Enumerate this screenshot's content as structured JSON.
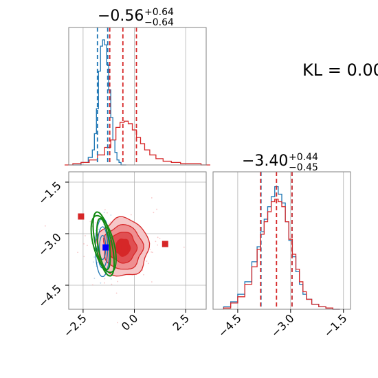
{
  "kl_label": "KL = 0.00",
  "colors": {
    "blue": "#1f77b4",
    "red": "#d62728",
    "green": "#138a13",
    "grid": "#b0b0b0",
    "contour_fill": [
      "#f6c7c8",
      "#ef8f91",
      "#e04f52",
      "#d62728"
    ]
  },
  "chart_data": [
    {
      "panel": "marginal-x",
      "type": "histogram",
      "title": {
        "value": "−0.56",
        "plus": "+0.64",
        "minus": "−0.64"
      },
      "xlim": [
        -3.2,
        3.5
      ],
      "series": [
        {
          "name": "",
          "color": "#1f77b4",
          "x": [
            -2.8,
            -2.4,
            -2.1,
            -2.0,
            -1.9,
            -1.8,
            -1.7,
            -1.6,
            -1.5,
            -1.4,
            -1.3,
            -1.2,
            -1.1,
            -1.0,
            -0.9,
            -0.8,
            -0.7,
            -0.6
          ],
          "density": [
            0.0,
            0.02,
            0.06,
            0.12,
            0.25,
            0.45,
            0.75,
            0.95,
            1.0,
            0.96,
            0.8,
            0.6,
            0.38,
            0.2,
            0.1,
            0.04,
            0.02,
            0.0
          ],
          "quantiles": [
            -1.8,
            -1.3
          ]
        },
        {
          "name": "",
          "color": "#d62728",
          "x": [
            -3.2,
            -2.8,
            -2.4,
            -2.0,
            -1.6,
            -1.3,
            -1.0,
            -0.8,
            -0.6,
            -0.4,
            -0.2,
            0.0,
            0.2,
            0.4,
            0.6,
            0.9,
            1.2,
            1.6,
            2.0,
            2.5,
            3.0,
            3.5
          ],
          "density": [
            0.0,
            0.01,
            0.02,
            0.04,
            0.08,
            0.14,
            0.2,
            0.3,
            0.34,
            0.35,
            0.33,
            0.28,
            0.22,
            0.17,
            0.12,
            0.08,
            0.05,
            0.03,
            0.02,
            0.01,
            0.01,
            0.0
          ],
          "quantiles": [
            -1.2,
            -0.56,
            0.1
          ]
        }
      ]
    },
    {
      "panel": "joint",
      "type": "contour",
      "xlim": [
        -3.2,
        3.5
      ],
      "ylim": [
        -5.2,
        -1.2
      ],
      "xticks": [
        "−2.5",
        "0.0",
        "2.5"
      ],
      "xtick_values": [
        -2.5,
        0.0,
        2.5
      ],
      "yticks": [
        "−1.5",
        "−3.0",
        "−4.5"
      ],
      "ytick_values": [
        -1.5,
        -3.0,
        -4.5
      ],
      "red_markers": [
        {
          "x": -2.6,
          "y": -2.5
        },
        {
          "x": 1.5,
          "y": -3.3
        },
        {
          "x": -0.5,
          "y": -3.4
        }
      ],
      "blue_markers": [
        {
          "x": -1.4,
          "y": -3.4
        }
      ]
    },
    {
      "panel": "marginal-y",
      "type": "histogram",
      "title": {
        "value": "−3.40",
        "plus": "+0.44",
        "minus": "−0.45"
      },
      "xlim": [
        -5.2,
        -1.3
      ],
      "xticks": [
        "−4.5",
        "−3.0",
        "−1.5"
      ],
      "xtick_values": [
        -4.5,
        -3.0,
        -1.5
      ],
      "series": [
        {
          "name": "",
          "color": "#1f77b4",
          "x": [
            -4.8,
            -4.6,
            -4.4,
            -4.2,
            -4.0,
            -3.9,
            -3.8,
            -3.7,
            -3.6,
            -3.5,
            -3.4,
            -3.3,
            -3.2,
            -3.1,
            -3.0,
            -2.9,
            -2.8,
            -2.7,
            -2.6,
            -2.5,
            -2.3,
            -2.1,
            -1.9,
            -1.7
          ],
          "density": [
            0.02,
            0.06,
            0.12,
            0.22,
            0.38,
            0.5,
            0.62,
            0.72,
            0.82,
            0.9,
            0.98,
            0.92,
            0.85,
            0.7,
            0.55,
            0.42,
            0.3,
            0.2,
            0.12,
            0.08,
            0.04,
            0.02,
            0.01,
            0.0
          ],
          "quantiles": [
            -3.84,
            -2.96
          ]
        },
        {
          "name": "",
          "color": "#d62728",
          "x": [
            -4.8,
            -4.6,
            -4.4,
            -4.2,
            -4.0,
            -3.9,
            -3.8,
            -3.7,
            -3.6,
            -3.5,
            -3.4,
            -3.3,
            -3.2,
            -3.1,
            -3.0,
            -2.9,
            -2.8,
            -2.7,
            -2.6,
            -2.5,
            -2.3,
            -2.1,
            -1.9,
            -1.7
          ],
          "density": [
            0.01,
            0.05,
            0.1,
            0.2,
            0.34,
            0.48,
            0.6,
            0.7,
            0.78,
            0.86,
            0.88,
            0.86,
            0.82,
            0.7,
            0.56,
            0.44,
            0.32,
            0.22,
            0.14,
            0.08,
            0.04,
            0.02,
            0.01,
            0.0
          ],
          "quantiles": [
            -3.85,
            -3.4,
            -2.96
          ]
        }
      ]
    }
  ]
}
